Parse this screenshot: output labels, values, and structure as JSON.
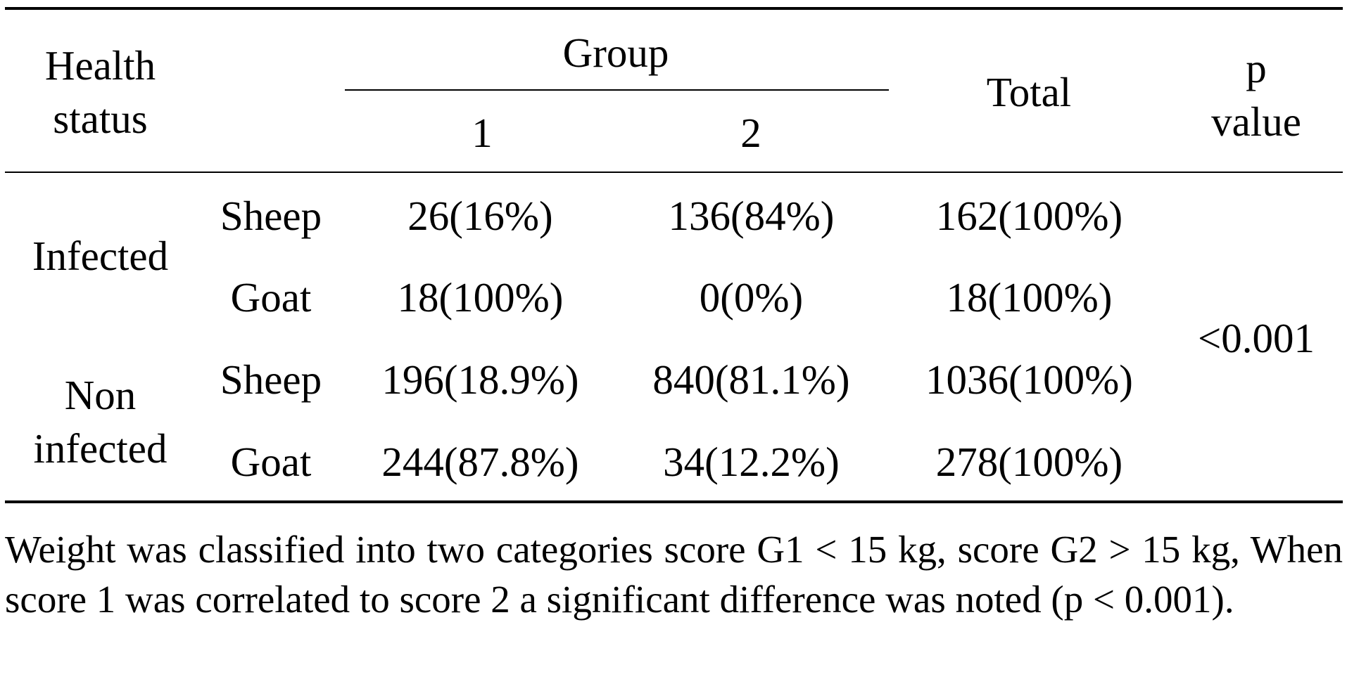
{
  "table": {
    "header": {
      "health_status": [
        "Health",
        "status"
      ],
      "group": "Group",
      "group_1": "1",
      "group_2": "2",
      "total": "Total",
      "p_value": [
        "p",
        "value"
      ]
    },
    "status_labels": {
      "infected": "Infected",
      "non_infected": [
        "Non",
        "infected"
      ]
    },
    "rows": [
      {
        "animal": "Sheep",
        "g1": "26(16%)",
        "g2": "136(84%)",
        "total": "162(100%)"
      },
      {
        "animal": "Goat",
        "g1": "18(100%)",
        "g2": "0(0%)",
        "total": "18(100%)"
      },
      {
        "animal": "Sheep",
        "g1": "196(18.9%)",
        "g2": "840(81.1%)",
        "total": "1036(100%)"
      },
      {
        "animal": "Goat",
        "g1": "244(87.8%)",
        "g2": "34(12.2%)",
        "total": "278(100%)"
      }
    ],
    "p_value": "<0.001"
  },
  "footnote": "Weight was classified into two categories score G1 < 15 kg, score G2 > 15 kg, When score 1 was correlated to score 2 a significant difference was noted (p < 0.001)."
}
